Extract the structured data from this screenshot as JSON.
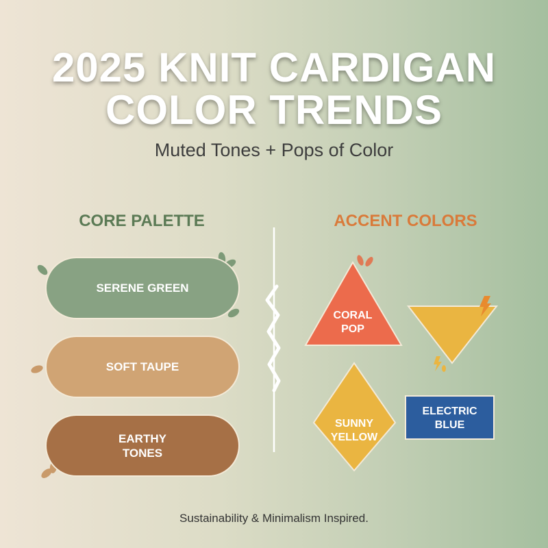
{
  "header": {
    "title_line1": "2025 KNIT CARDIGAN",
    "title_line2": "COLOR TRENDS",
    "subtitle": "Muted Tones + Pops of Color"
  },
  "core_palette": {
    "heading": "CORE PALETTE",
    "heading_color": "#5b7a55",
    "items": [
      {
        "label": "SERENE GREEN",
        "color": "#88a283"
      },
      {
        "label": "SOFT TAUPE",
        "color": "#d0a474"
      },
      {
        "label_line1": "EARTHY",
        "label_line2": "TONES",
        "color": "#a67046"
      }
    ]
  },
  "accent_colors": {
    "heading": "ACCENT COLORS",
    "heading_color": "#d97a3a",
    "items": [
      {
        "label_line1": "CORAL",
        "label_line2": "POP",
        "shape": "triangle",
        "color": "#ec6b4c"
      },
      {
        "shape": "inverted-triangle",
        "color": "#eab541"
      },
      {
        "label_line1": "SUNNY",
        "label_line2": "YELLOW",
        "shape": "diamond",
        "color": "#eab541"
      },
      {
        "label_line1": "ELECTRIC",
        "label_line2": "BLUE",
        "shape": "rectangle",
        "color": "#2c5d9e"
      }
    ]
  },
  "footer": {
    "text": "Sustainability & Minimalism Inspired."
  }
}
